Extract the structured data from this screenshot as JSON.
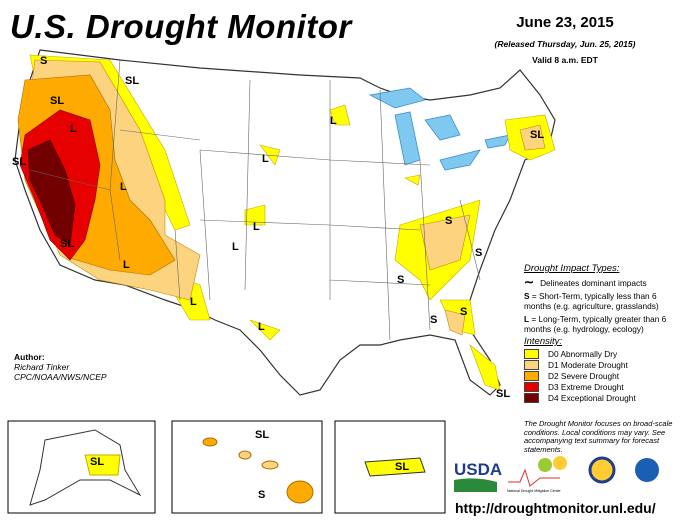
{
  "header": {
    "title": "U.S. Drought Monitor",
    "date": "June 23, 2015",
    "released": "(Released Thursday, Jun. 25, 2015)",
    "valid": "Valid 8 a.m. EDT"
  },
  "author": {
    "label": "Author:",
    "name": "Richard Tinker",
    "org": "CPC/NOAA/NWS/NCEP"
  },
  "legend": {
    "impact_title": "Drought Impact Types:",
    "delineates": "Delineates dominant impacts",
    "s_key": "S",
    "s_text": "= Short-Term, typically less than 6 months (e.g. agriculture, grasslands)",
    "l_key": "L",
    "l_text": "= Long-Term, typically greater than 6 months (e.g. hydrology, ecology)",
    "intensity_title": "Intensity:",
    "items": [
      {
        "label": "D0 Abnormally Dry",
        "color": "#FFFF00"
      },
      {
        "label": "D1 Moderate Drought",
        "color": "#FCD37F"
      },
      {
        "label": "D2 Severe Drought",
        "color": "#FFAA00"
      },
      {
        "label": "D3 Extreme Drought",
        "color": "#E60000"
      },
      {
        "label": "D4 Exceptional Drought",
        "color": "#730000"
      }
    ]
  },
  "note": "The Drought Monitor focuses on broad-scale conditions. Local conditions may vary. See accompanying text summary for forecast statements.",
  "map_labels": {
    "wa": "S",
    "mt": "SL",
    "id": "SL",
    "or": "L",
    "ca_n": "SL",
    "ca_s": "SL",
    "nv": "L",
    "ut": "L",
    "az": "L",
    "nm": "L",
    "wy": "L",
    "co": "L",
    "ne": "L",
    "tx": "L",
    "mn": "L",
    "va": "S",
    "nc": "S",
    "tn": "S",
    "ga": "S",
    "ga2": "S",
    "fl": "SL",
    "ne_us": "SL",
    "ak": "SL",
    "hi_l": "SL",
    "hi_s": "S",
    "pr": "SL"
  },
  "logos": {
    "usda": "USDA",
    "ndmc": "National Drought Mitigation Center"
  },
  "url": "http://droughtmonitor.unl.edu/"
}
